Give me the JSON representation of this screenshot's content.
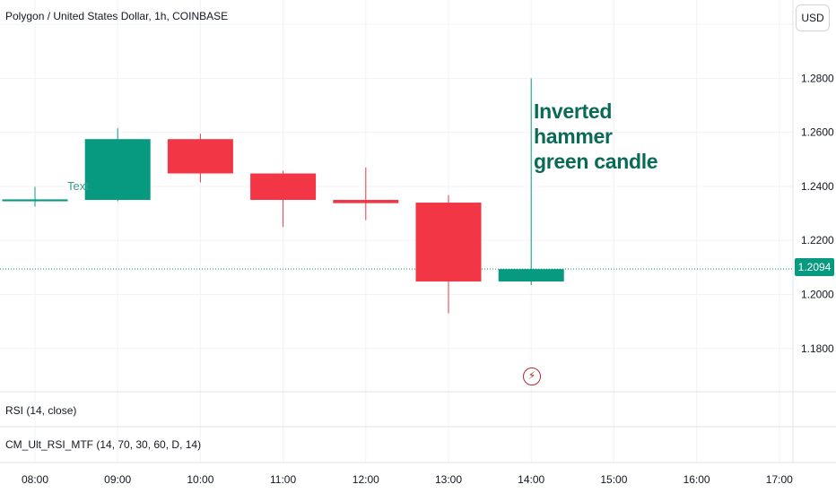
{
  "header": {
    "title": "Polygon / United States Dollar, 1h, COINBASE",
    "currency": "USD"
  },
  "chart_data": {
    "type": "candlestick",
    "x": [
      "08:00",
      "09:00",
      "10:00",
      "11:00",
      "12:00",
      "13:00",
      "14:00",
      "15:00",
      "16:00",
      "17:00"
    ],
    "candles": [
      {
        "time": "08:00",
        "open": 1.2345,
        "high": 1.2398,
        "low": 1.2325,
        "close": 1.2352
      },
      {
        "time": "09:00",
        "open": 1.235,
        "high": 1.2615,
        "low": 1.2345,
        "close": 1.2575
      },
      {
        "time": "10:00",
        "open": 1.2575,
        "high": 1.2595,
        "low": 1.2415,
        "close": 1.2448
      },
      {
        "time": "11:00",
        "open": 1.2448,
        "high": 1.2458,
        "low": 1.225,
        "close": 1.235
      },
      {
        "time": "12:00",
        "open": 1.235,
        "high": 1.247,
        "low": 1.2275,
        "close": 1.2338
      },
      {
        "time": "13:00",
        "open": 1.234,
        "high": 1.2368,
        "low": 1.193,
        "close": 1.2048
      },
      {
        "time": "14:00",
        "open": 1.2048,
        "high": 1.28,
        "low": 1.2035,
        "close": 1.2094
      }
    ],
    "y_ticks": [
      "1.2800",
      "1.2600",
      "1.2400",
      "1.2200",
      "1.2000",
      "1.1800"
    ],
    "ylim": [
      1.164,
      1.309
    ],
    "last_price": "1.2094",
    "up_color": "#089981",
    "down_color": "#f23645"
  },
  "annotations": {
    "main_line1": "Inverted hammer",
    "main_line2": "green candle",
    "text_tool": "Text"
  },
  "indicators": {
    "rsi": "RSI (14, close)",
    "cm": "CM_Ult_RSI_MTF (14, 70, 30, 60, D, 14)"
  },
  "event_icon": "lightning-icon"
}
